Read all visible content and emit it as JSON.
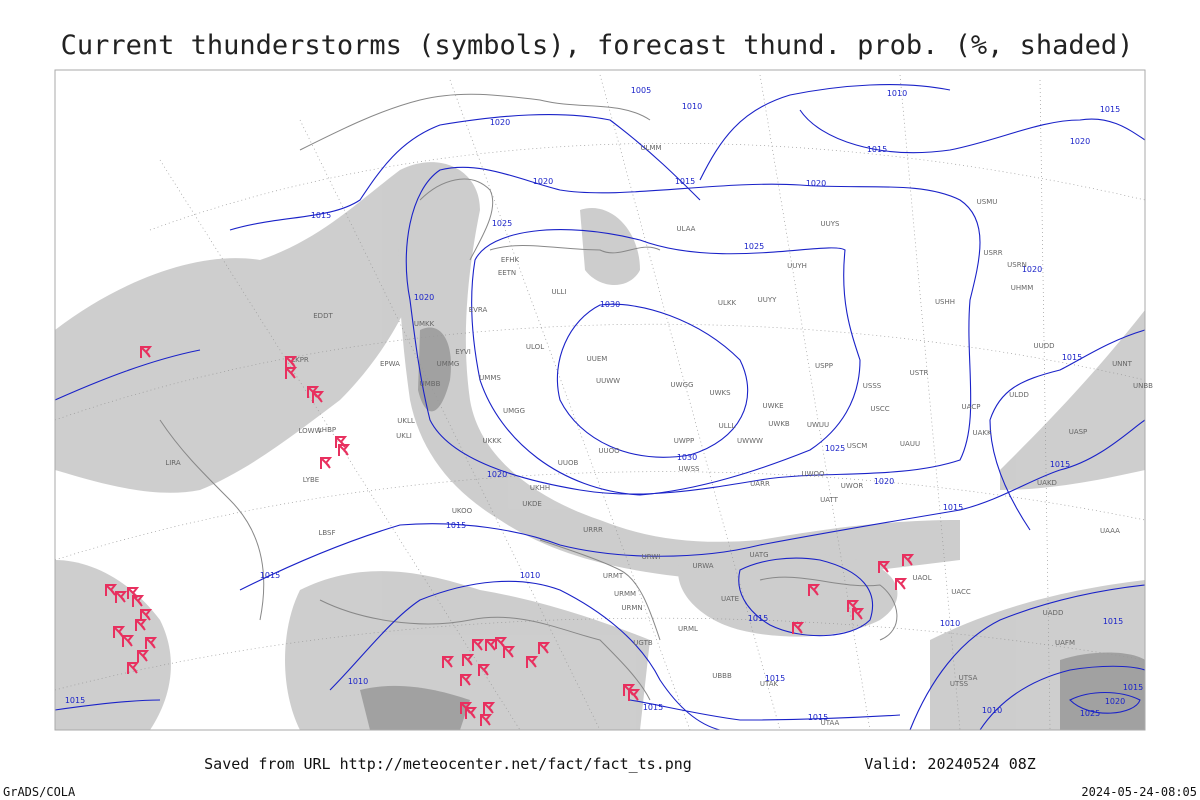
{
  "header": {
    "title": "Current thunderstorms (symbols), forecast thund. prob. (%, shaded)"
  },
  "footer": {
    "source": "Saved from URL http://meteocenter.net/fact/fact_ts.png",
    "valid": "Valid: 20240524 08Z",
    "credit": "GrADS/COLA",
    "timestamp": "2024-05-24-08:05"
  },
  "isobars": [
    {
      "label": "1005"
    },
    {
      "label": "1010"
    },
    {
      "label": "1010"
    },
    {
      "label": "1015"
    },
    {
      "label": "1020"
    },
    {
      "label": "1020"
    },
    {
      "label": "1015"
    },
    {
      "label": "1015"
    },
    {
      "label": "1020"
    },
    {
      "label": "1020"
    },
    {
      "label": "1015"
    },
    {
      "label": "1025"
    },
    {
      "label": "1025"
    },
    {
      "label": "1020"
    },
    {
      "label": "1020"
    },
    {
      "label": "1030"
    },
    {
      "label": "1030"
    },
    {
      "label": "1025"
    },
    {
      "label": "1020"
    },
    {
      "label": "1020"
    },
    {
      "label": "1015"
    },
    {
      "label": "1015"
    },
    {
      "label": "1015"
    },
    {
      "label": "1015"
    },
    {
      "label": "1010"
    },
    {
      "label": "1015"
    },
    {
      "label": "1015"
    },
    {
      "label": "1010"
    },
    {
      "label": "1015"
    },
    {
      "label": "1015"
    },
    {
      "label": "1010"
    },
    {
      "label": "1015"
    },
    {
      "label": "1015"
    },
    {
      "label": "1010"
    },
    {
      "label": "1015"
    },
    {
      "label": "1020"
    },
    {
      "label": "1025"
    },
    {
      "label": "1015"
    }
  ],
  "stations": [
    "ULMM",
    "ULAA",
    "UUYS",
    "UUYH",
    "UUYY",
    "ULKK",
    "UUEM",
    "UUWW",
    "UWGG",
    "UWKS",
    "UWKE",
    "USPP",
    "USSS",
    "USTR",
    "USCC",
    "UWKB",
    "UWUU",
    "UWPP",
    "UWWW",
    "USCM",
    "UAUU",
    "UUOO",
    "UWSS",
    "UARR",
    "UWOO",
    "UWOR",
    "UATT",
    "ULLI",
    "ULOL",
    "UMMG",
    "UMMS",
    "UMGG",
    "UKKK",
    "UKLL",
    "UKLI",
    "EPWA",
    "UMBB",
    "UMKK",
    "EYVI",
    "EVRA",
    "EETN",
    "EFHK",
    "EDDT",
    "LKPR",
    "LOWW",
    "LHBP",
    "LYBE",
    "LIRA",
    "LBSF",
    "UKHH",
    "UKDE",
    "UKOO",
    "UUOB",
    "URRR",
    "URWI",
    "URWA",
    "URMT",
    "URMM",
    "URMN",
    "URML",
    "UGTB",
    "UBBB",
    "UTAK",
    "UTAA",
    "UATG",
    "UATE",
    "UAOL",
    "UACC",
    "UAKD",
    "UACP",
    "UAKK",
    "UASP",
    "UAAA",
    "UADD",
    "UAFM",
    "UTSA",
    "UTSS",
    "ULDD",
    "USHH",
    "USRR",
    "USRN",
    "USMU",
    "UHMM",
    "UNBB",
    "UNNT",
    "ULLL",
    "UUDD"
  ]
}
